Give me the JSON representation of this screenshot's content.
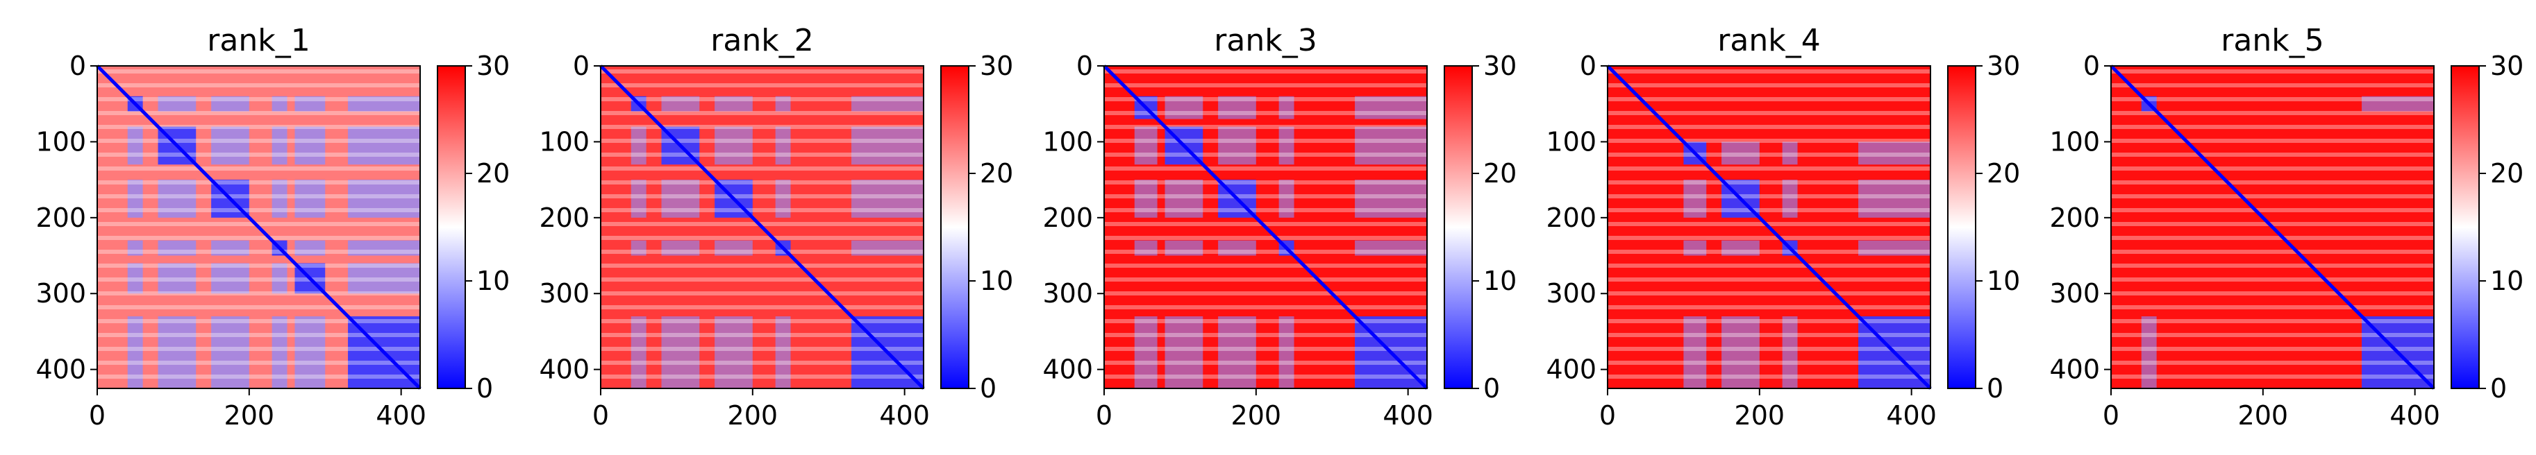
{
  "chart_data": [
    {
      "type": "heatmap",
      "title": "rank_1",
      "x_ticks": [
        "0",
        "200",
        "400"
      ],
      "y_ticks": [
        "0",
        "100",
        "200",
        "300",
        "400"
      ],
      "xlim": [
        0,
        425
      ],
      "ylim": [
        425,
        0
      ],
      "colorbar": {
        "ticks": [
          "0",
          "10",
          "20",
          "30"
        ],
        "range": [
          0,
          30
        ],
        "colormap": "bwr"
      },
      "blocks": [
        [
          40,
          60,
          "low"
        ],
        [
          80,
          130,
          "low"
        ],
        [
          150,
          200,
          "low"
        ],
        [
          230,
          250,
          "low"
        ],
        [
          260,
          300,
          "low"
        ],
        [
          330,
          425,
          "low"
        ]
      ],
      "background": "mixed",
      "diagonal": "low"
    },
    {
      "type": "heatmap",
      "title": "rank_2",
      "x_ticks": [
        "0",
        "200",
        "400"
      ],
      "y_ticks": [
        "0",
        "100",
        "200",
        "300",
        "400"
      ],
      "xlim": [
        0,
        425
      ],
      "ylim": [
        425,
        0
      ],
      "colorbar": {
        "ticks": [
          "0",
          "10",
          "20",
          "30"
        ],
        "range": [
          0,
          30
        ],
        "colormap": "bwr"
      },
      "blocks": [
        [
          40,
          60,
          "low"
        ],
        [
          80,
          130,
          "low"
        ],
        [
          150,
          200,
          "low"
        ],
        [
          230,
          250,
          "low"
        ],
        [
          330,
          425,
          "low"
        ]
      ],
      "background": "mostly-high",
      "diagonal": "low"
    },
    {
      "type": "heatmap",
      "title": "rank_3",
      "x_ticks": [
        "0",
        "200",
        "400"
      ],
      "y_ticks": [
        "0",
        "100",
        "200",
        "300",
        "400"
      ],
      "xlim": [
        0,
        425
      ],
      "ylim": [
        425,
        0
      ],
      "colorbar": {
        "ticks": [
          "0",
          "10",
          "20",
          "30"
        ],
        "range": [
          0,
          30
        ],
        "colormap": "bwr"
      },
      "blocks": [
        [
          40,
          70,
          "low"
        ],
        [
          80,
          130,
          "low"
        ],
        [
          150,
          200,
          "low"
        ],
        [
          230,
          250,
          "low"
        ],
        [
          330,
          425,
          "low"
        ]
      ],
      "background": "high",
      "diagonal": "low"
    },
    {
      "type": "heatmap",
      "title": "rank_4",
      "x_ticks": [
        "0",
        "200",
        "400"
      ],
      "y_ticks": [
        "0",
        "100",
        "200",
        "300",
        "400"
      ],
      "xlim": [
        0,
        425
      ],
      "ylim": [
        425,
        0
      ],
      "colorbar": {
        "ticks": [
          "0",
          "10",
          "20",
          "30"
        ],
        "range": [
          0,
          30
        ],
        "colormap": "bwr"
      },
      "blocks": [
        [
          100,
          130,
          "low"
        ],
        [
          150,
          200,
          "low"
        ],
        [
          230,
          250,
          "low"
        ],
        [
          330,
          425,
          "low"
        ]
      ],
      "background": "high",
      "diagonal": "low"
    },
    {
      "type": "heatmap",
      "title": "rank_5",
      "x_ticks": [
        "0",
        "200",
        "400"
      ],
      "y_ticks": [
        "0",
        "100",
        "200",
        "300",
        "400"
      ],
      "xlim": [
        0,
        425
      ],
      "ylim": [
        425,
        0
      ],
      "colorbar": {
        "ticks": [
          "0",
          "10",
          "20",
          "30"
        ],
        "range": [
          0,
          30
        ],
        "colormap": "bwr"
      },
      "blocks": [
        [
          40,
          60,
          "low"
        ],
        [
          330,
          425,
          "low"
        ]
      ],
      "background": "high",
      "diagonal": "low"
    }
  ],
  "colors": {
    "low": "#0000ff",
    "mid": "#ffffff",
    "high": "#ff0000"
  }
}
